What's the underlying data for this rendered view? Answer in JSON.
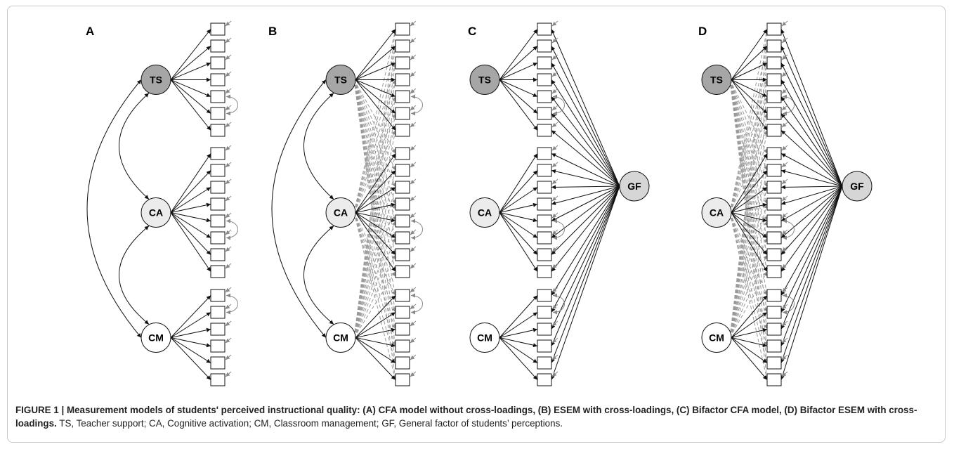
{
  "figure": {
    "panels": [
      {
        "label": "A",
        "factors": [
          "TS",
          "CA",
          "CM"
        ]
      },
      {
        "label": "B",
        "factors": [
          "TS",
          "CA",
          "CM"
        ]
      },
      {
        "label": "C",
        "factors": [
          "TS",
          "CA",
          "CM"
        ],
        "general": "GF"
      },
      {
        "label": "D",
        "factors": [
          "TS",
          "CA",
          "CM"
        ],
        "general": "GF"
      }
    ],
    "caption": {
      "bold": "FIGURE 1 | Measurement models of students' perceived instructional quality: (A) CFA model without cross-loadings, (B) ESEM with cross-loadings, (C) Bifactor CFA model, (D) Bifactor ESEM with cross-loadings.",
      "text": "TS, Teacher support; CA, Cognitive activation; CM, Classroom management; GF, General factor of students’ perceptions."
    }
  }
}
